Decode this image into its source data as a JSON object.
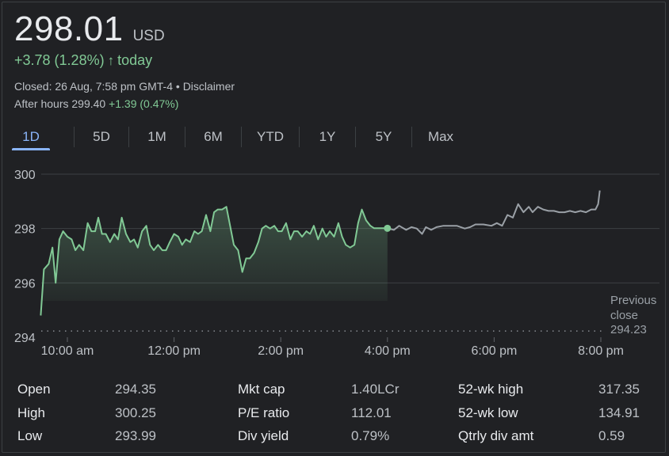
{
  "quote": {
    "price": "298.01",
    "currency": "USD",
    "change": "+3.78 (1.28%)",
    "change_arrow": "↑",
    "change_period": "today",
    "closed_text": "Closed: 26 Aug, 7:58 pm GMT-4 •",
    "disclaimer": "Disclaimer",
    "after_hours_label": "After hours 299.40",
    "after_hours_change": "+1.39 (0.47%)"
  },
  "tabs": [
    {
      "label": "1D",
      "active": true
    },
    {
      "label": "5D",
      "active": false
    },
    {
      "label": "1M",
      "active": false
    },
    {
      "label": "6M",
      "active": false
    },
    {
      "label": "YTD",
      "active": false
    },
    {
      "label": "1Y",
      "active": false
    },
    {
      "label": "5Y",
      "active": false
    },
    {
      "label": "Max",
      "active": false
    }
  ],
  "colors": {
    "positive": "#81c995",
    "after_hours_line": "#9aa0a6",
    "grid": "#3c4043",
    "active_tab": "#8ab4f8"
  },
  "chart_data": {
    "type": "line",
    "xlabel": "",
    "ylabel": "",
    "xlim": [
      9.5,
      20.5
    ],
    "ylim": [
      294,
      300
    ],
    "y_ticks": [
      "300",
      "298",
      "296",
      "294"
    ],
    "y_tick_values": [
      300,
      298,
      296,
      294
    ],
    "x_ticks": [
      "10:00 am",
      "12:00 pm",
      "2:00 pm",
      "4:00 pm",
      "6:00 pm",
      "8:00 pm"
    ],
    "x_tick_values": [
      10,
      12,
      14,
      16,
      18,
      20
    ],
    "grid": true,
    "previous_close": {
      "label_lines": [
        "Previous",
        "close"
      ],
      "value": 294.23,
      "value_label": "294.23"
    },
    "market_close_hour": 16,
    "series": [
      {
        "session": "regular",
        "x": [
          9.5,
          9.56,
          9.65,
          9.72,
          9.78,
          9.85,
          9.92,
          10.0,
          10.08,
          10.15,
          10.22,
          10.3,
          10.38,
          10.45,
          10.52,
          10.58,
          10.65,
          10.72,
          10.8,
          10.88,
          10.95,
          11.02,
          11.1,
          11.18,
          11.25,
          11.32,
          11.4,
          11.48,
          11.55,
          11.62,
          11.7,
          11.78,
          11.85,
          11.92,
          12.0,
          12.08,
          12.15,
          12.22,
          12.3,
          12.38,
          12.45,
          12.52,
          12.6,
          12.68,
          12.75,
          12.82,
          12.9,
          12.98,
          13.05,
          13.12,
          13.2,
          13.28,
          13.35,
          13.42,
          13.5,
          13.58,
          13.65,
          13.72,
          13.8,
          13.88,
          13.95,
          14.02,
          14.1,
          14.18,
          14.25,
          14.32,
          14.4,
          14.48,
          14.55,
          14.62,
          14.7,
          14.78,
          14.85,
          14.92,
          15.0,
          15.08,
          15.15,
          15.22,
          15.3,
          15.38,
          15.45,
          15.52,
          15.6,
          15.68,
          15.75,
          15.82,
          15.9,
          15.95,
          16.0
        ],
        "y": [
          294.8,
          296.5,
          296.7,
          297.3,
          296.0,
          297.6,
          297.9,
          297.7,
          297.6,
          297.2,
          297.4,
          297.2,
          298.2,
          297.9,
          297.9,
          298.4,
          297.8,
          297.8,
          297.5,
          297.8,
          297.6,
          298.4,
          297.8,
          297.5,
          297.6,
          297.3,
          297.9,
          298.1,
          297.4,
          297.2,
          297.4,
          297.2,
          297.2,
          297.5,
          297.8,
          297.7,
          297.4,
          297.6,
          297.5,
          297.9,
          297.8,
          297.9,
          298.5,
          297.9,
          298.6,
          298.7,
          298.7,
          298.8,
          298.1,
          297.4,
          297.2,
          296.4,
          296.9,
          296.9,
          297.1,
          297.5,
          298.0,
          298.1,
          298.0,
          298.1,
          297.9,
          297.9,
          298.2,
          297.6,
          297.9,
          297.9,
          297.7,
          297.9,
          297.8,
          298.1,
          297.6,
          298.0,
          297.7,
          297.9,
          297.7,
          298.2,
          297.7,
          297.4,
          297.3,
          297.4,
          298.2,
          298.7,
          298.3,
          298.1,
          298.01,
          298.01,
          298.01,
          298.01,
          298.01
        ]
      },
      {
        "session": "after_hours",
        "x": [
          16.0,
          16.12,
          16.22,
          16.35,
          16.45,
          16.55,
          16.65,
          16.72,
          16.82,
          16.92,
          17.05,
          17.15,
          17.3,
          17.45,
          17.55,
          17.65,
          17.8,
          17.95,
          18.05,
          18.15,
          18.25,
          18.35,
          18.45,
          18.55,
          18.65,
          18.72,
          18.82,
          18.92,
          19.02,
          19.12,
          19.22,
          19.32,
          19.42,
          19.52,
          19.62,
          19.72,
          19.82,
          19.9,
          19.95,
          19.98
        ],
        "y": [
          298.01,
          297.95,
          298.1,
          297.95,
          298.05,
          298.0,
          297.8,
          298.05,
          297.95,
          298.05,
          298.1,
          298.1,
          298.1,
          298.0,
          298.05,
          298.15,
          298.15,
          298.1,
          298.2,
          298.1,
          298.5,
          298.4,
          298.9,
          298.6,
          298.8,
          298.6,
          298.8,
          298.7,
          298.65,
          298.65,
          298.6,
          298.6,
          298.65,
          298.6,
          298.65,
          298.6,
          298.7,
          298.7,
          298.9,
          299.4
        ]
      }
    ]
  },
  "stats": [
    [
      {
        "label": "Open",
        "value": "294.35"
      },
      {
        "label": "High",
        "value": "300.25"
      },
      {
        "label": "Low",
        "value": "293.99"
      }
    ],
    [
      {
        "label": "Mkt cap",
        "value": "1.40LCr"
      },
      {
        "label": "P/E ratio",
        "value": "112.01"
      },
      {
        "label": "Div yield",
        "value": "0.79%"
      }
    ],
    [
      {
        "label": "52-wk high",
        "value": "317.35"
      },
      {
        "label": "52-wk low",
        "value": "134.91"
      },
      {
        "label": "Qtrly div amt",
        "value": "0.59"
      }
    ]
  ]
}
